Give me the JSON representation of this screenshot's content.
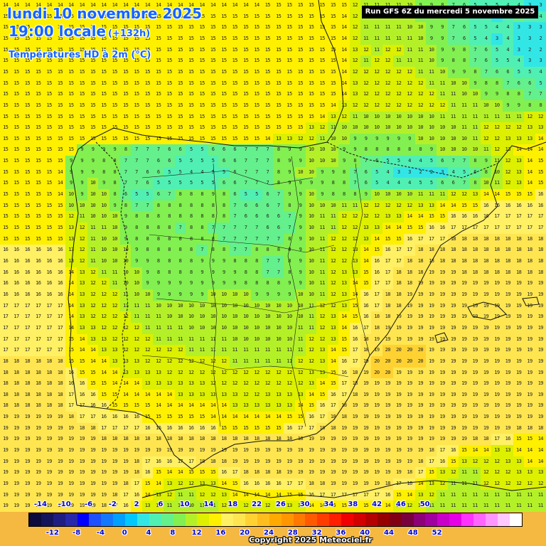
{
  "header": {
    "date_line": "lundi 10 novembre 2025",
    "time_line": "19:00 locale",
    "lead_time": "(+132h)",
    "parameter": "Températures HD à 2m (°C)",
    "run_info": "Run GFS 6Z du mercredi 5 novembre 2025"
  },
  "footer": {
    "copyright": "Copyright 2025 Meteociel.fr"
  },
  "legend": {
    "unit": "°C",
    "ticks_top": [
      "-14",
      "-10",
      "-6",
      "-2",
      "2",
      "6",
      "10",
      "14",
      "18",
      "22",
      "26",
      "30",
      "34",
      "38",
      "42",
      "46",
      "50"
    ],
    "ticks_bottom": [
      "-12",
      "-8",
      "-4",
      "0",
      "4",
      "8",
      "12",
      "16",
      "20",
      "24",
      "28",
      "32",
      "36",
      "40",
      "44",
      "48",
      "52"
    ],
    "colors": [
      "#0a0a3c",
      "#14145a",
      "#1e1e82",
      "#2828aa",
      "#0000ff",
      "#1e50ff",
      "#1478ff",
      "#00a0ff",
      "#00c8ff",
      "#32e6e6",
      "#50f0b4",
      "#64f08c",
      "#82f050",
      "#b4f028",
      "#dcf000",
      "#fff000",
      "#fff064",
      "#ffe650",
      "#ffd232",
      "#ffbe1e",
      "#ffaa00",
      "#ff9600",
      "#ff7800",
      "#ff5a00",
      "#ff3c00",
      "#ff1e00",
      "#f00000",
      "#d20000",
      "#b40000",
      "#960000",
      "#820014",
      "#78003c",
      "#8c0078",
      "#a000a0",
      "#c800c8",
      "#e600e6",
      "#ff32ff",
      "#ff64ff",
      "#ff96ff",
      "#ffc8ff",
      "#ffffff"
    ]
  },
  "chart_data": {
    "type": "heatmap",
    "title": "Températures HD à 2m (°C)",
    "subtitle": "lundi 10 novembre 2025 19:00 locale (+132h) — Run GFS 6Z du mercredi 5 novembre 2025",
    "region": "Iberian Peninsula, southern France, Balearic Islands, Morocco north coast",
    "unit": "°C",
    "grid_cols": 50,
    "grid_rows": 46,
    "rows": [
      "14 14 14 14 14 14 14 14 14 14 14 14 14 14 14 14 14 14 14 14 14 14 14 14 15 15 15 15 15 15 15 15 12 11 11 11 11 10 9 9 8 7 6 5 5 5 4 4 3 3",
      "15 15 15 15 15 15 15 15 15 15 15 15 15 15 15 15 15 15 15 15 15 15 15 15 15 15 15 15 15 15 15 14 12 11 11 11 11 10 9 9 8 7 6 5 5 3 5 6 4 4",
      "15 15 15 15 15 15 15 15 15 15 15 15 15 15 15 15 15 15 15 15 15 15 15 15 15 15 15 15 15 15 15 14 12 11 11 11 11 10 10 9 9 7 6 5 5 4 4 3 3 3",
      "15 15 15 15 15 15 15 15 15 15 15 15 15 15 15 15 15 15 15 15 15 15 15 15 15 15 15 15 15 15 15 14 12 11 11 11 11 11 10 9 9 7 6 5 4 3 4 3 3 2",
      "15 15 15 15 15 15 15 15 15 15 15 15 15 15 15 15 15 15 15 15 15 15 15 15 15 15 15 15 15 15 15 14 13 12 11 12 12 11 11 10 9 9 8 7 6 5 4 3 2 2",
      "15 15 15 15 15 15 15 15 15 15 15 15 15 15 15 15 15 15 15 15 15 15 15 15 15 15 15 15 15 15 15 14 12 11 12 12 11 11 11 10 9 8 8 7 6 5 5 4 3 3",
      "15 15 15 15 15 15 15 15 15 15 15 15 15 15 15 15 15 15 15 15 15 15 15 15 15 15 15 15 15 15 15 14 12 12 12 12 12 12 11 11 10 9 9 8 7 6 6 5 5 4",
      "15 15 15 15 15 15 15 15 15 15 15 15 15 15 15 15 15 15 15 15 15 15 15 15 15 15 15 15 15 15 15 14 13 12 12 12 12 12 12 11 11 10 10 9 8 8 7 6 6 5",
      "15 15 15 15 15 15 15 15 15 15 15 15 15 15 15 15 15 15 15 15 15 15 15 15 15 15 15 15 15 15 15 14 13 12 12 12 12 12 12 12 11 11 10 10 9 9 8 8 7 7",
      "15 15 15 15 15 15 15 15 15 15 15 15 15 15 15 15 15 15 15 15 15 15 15 15 15 15 15 15 15 15 14 13 12 12 12 12 12 12 12 12 12 11 11 11 10 10 9 9 8 8",
      "15 15 15 15 15 15 15 15 15 15 15 15 15 15 15 15 15 15 15 15 15 15 15 15 15 15 15 15 15 14 13 12 11 10 10 10 10 10 10 10 11 11 11 11 11 11 11 11 12 12",
      "15 15 15 15 15 15 15 15 15 15 15 15 15 15 15 15 15 15 15 15 15 15 15 15 15 15 15 15 13 12 11 10 10 10 10 10 10 10 10 10 10 10 11 11 12 12 12 12 13 13",
      "15 15 15 15 15 15 15 15 15 15 15 15 15 15 15 15 15 15 15 15 15 15 15 15 14 13 13 12 12 11 10 10 9 9 9 9 9 9 10 10 10 10 10 11 12 12 13 13 13 14",
      "15 15 15 15 15 15 15 9 9 9 9 8 7 7 7 6 6 5 5 6 6 6 7 7 7 8 9 9 10 10 10 9 9 8 8 8 8 8 8 9 10 10 10 10 11 12 13 14 14 14",
      "15 15 15 15 15 15 9 9 9 8 8 7 7 7 6 6 5 5 5 5 6 6 7 7 7 8 9 9 10 10 10 9 8 7 6 5 5 4 4 5 6 7 7 8 9 11 12 13 14 15",
      "15 15 15 15 15 14 9 9 9 8 8 7 7 6 6 5 5 4 4 5 5 6 7 7 7 8 9 10 10 9 9 8 7 6 5 4 3 3 2 2 3 4 5 6 8 10 12 13 14 15",
      "15 15 15 15 15 14 9 9 10 9 8 7 7 6 5 5 5 5 5 5 6 6 7 7 7 8 9 9 9 9 8 8 7 6 5 4 4 4 5 5 6 6 7 8 10 11 12 13 14 15",
      "15 15 15 15 15 14 10 9 10 10 8 6 5 5 6 7 8 8 8 9 8 6 5 5 6 7 9 9 10 9 8 8 8 9 10 10 10 10 11 11 11 12 12 13 14 14 15 15 15 16",
      "15 15 15 15 15 15 10 10 10 10 9 8 7 7 8 8 8 8 8 8 8 7 6 6 6 7 8 9 10 10 10 11 11 12 12 12 12 12 13 13 14 14 15 15 16 16 16 16 16 16",
      "15 15 15 15 15 15 12 11 10 10 10 9 8 8 8 8 8 8 8 8 8 7 6 6 6 6 7 9 10 11 11 12 12 12 12 13 13 14 14 15 15 16 16 16 16 17 17 17 17 17",
      "15 15 15 15 15 15 13 12 11 11 10 9 8 8 8 8 7 8 8 7 7 7 7 7 6 6 7 9 10 11 11 12 12 13 13 14 14 15 15 16 16 17 17 17 17 17 17 17 17 17",
      "15 15 15 15 15 15 13 12 11 10 10 9 8 8 8 8 8 8 8 8 7 7 7 7 7 7 8 9 10 11 12 12 12 13 14 15 15 16 17 17 17 18 18 18 18 18 18 18 18 18",
      "16 16 16 16 16 16 13 12 11 10 10 10 9 8 8 8 8 8 7 8 8 7 7 8 8 8 8 9 10 11 12 12 13 14 15 16 17 17 18 18 18 18 18 18 18 18 18 18 18 18",
      "16 16 16 16 16 16 13 12 11 10 10 10 9 9 8 8 8 8 9 9 9 8 8 8 7 7 8 9 10 11 12 12 13 14 16 17 17 18 18 18 18 18 18 18 18 18 18 18 18 18",
      "16 16 16 16 16 16 14 13 12 11 11 10 10 9 8 8 8 8 9 9 9 9 8 8 7 7 8 9 10 11 12 13 13 15 16 17 18 18 18 19 19 19 18 18 18 18 18 18 18 18",
      "16 16 16 16 16 16 14 13 12 12 11 10 10 9 9 9 9 9 9 9 9 9 8 8 8 8 9 9 10 11 12 13 14 15 17 17 18 18 19 19 19 19 19 19 19 19 19 19 19 19",
      "16 16 16 16 16 16 14 13 12 12 12 11 10 10 9 9 9 9 9 10 10 10 10 9 9 9 9 10 10 11 12 13 14 16 17 18 18 19 19 19 19 19 19 19 19 19 19 19 19 19",
      "17 17 17 17 17 17 14 13 12 12 12 11 11 11 10 10 10 10 10 10 10 10 10 10 10 10 10 10 11 12 12 13 15 16 17 18 18 19 19 19 19 19 19 19 19 19 19 19 19 19",
      "17 17 17 17 17 17 14 13 12 12 12 12 11 11 11 10 10 10 10 10 10 10 10 10 10 10 10 10 11 12 13 14 15 16 18 18 19 19 19 19 19 19 19 19 19 19 19 19 19 19",
      "17 17 17 17 17 17 14 13 13 12 12 12 12 11 11 11 11 10 10 10 10 10 10 10 10 10 10 11 11 12 13 14 16 17 18 19 19 19 19 19 19 19 19 19 19 19 19 19 19 19",
      "17 17 17 17 17 17 15 14 13 13 12 12 12 12 11 11 11 11 11 11 11 10 10 10 10 10 10 11 12 12 13 15 16 18 19 19 19 19 19 19 19 19 19 19 19 19 19 19 19 19",
      "17 17 17 17 17 17 15 14 14 13 13 12 12 12 12 12 12 11 11 11 11 11 11 11 11 11 11 11 12 13 14 15 17 18 19 20 20 20 20 19 19 19 19 19 19 19 19 19 19 19",
      "18 18 18 18 18 18 15 15 14 14 13 13 13 12 12 12 12 12 12 12 12 11 11 11 11 11 11 12 12 13 14 16 17 19 20 20 20 20 20 19 19 19 19 19 19 19 19 19 19 19",
      "18 18 18 18 18 18 16 15 15 14 14 13 13 13 13 12 12 12 12 12 12 12 12 12 12 12 12 12 13 13 15 16 18 19 20 20 19 19 19 19 19 19 19 19 19 19 19 19 19 19",
      "18 18 18 18 18 18 16 16 15 15 14 14 14 13 13 13 13 13 13 12 12 12 12 12 12 12 12 12 13 14 15 17 18 19 19 19 19 19 19 19 19 19 19 19 19 19 19 19 19 19",
      "18 18 18 18 18 18 17 16 16 15 15 14 14 14 14 14 13 13 13 13 13 13 12 12 13 13 13 13 14 15 16 17 18 19 19 19 19 19 19 19 19 19 19 19 19 19 19 19 19 19",
      "18 18 18 18 18 18 17 17 16 16 15 15 15 15 14 14 14 14 14 14 14 13 13 13 13 13 13 14 15 16 17 18 19 19 19 19 19 19 19 19 19 19 19 19 19 19 19 19 19 19",
      "19 19 19 19 19 19 18 17 17 16 16 16 16 15 15 15 15 15 15 14 14 14 14 14 14 14 15 15 16 17 18 18 19 19 19 19 19 19 19 19 19 19 19 19 19 19 19 19 19 19",
      "19 19 19 19 19 19 19 18 18 17 17 17 17 16 16 16 16 16 16 16 15 15 15 15 15 15 16 17 17 18 18 19 19 19 19 19 19 19 19 19 19 19 19 19 19 19 19 18 18 18",
      "19 19 19 19 19 19 19 19 19 18 18 18 18 18 18 18 18 18 18 18 18 18 18 18 18 18 18 18 19 19 19 19 19 19 19 19 19 19 19 19 19 19 19 18 18 17 16 15 15 14",
      "19 19 19 19 19 19 19 19 19 19 19 19 19 19 19 19 19 19 19 19 19 19 19 19 19 19 19 19 19 19 19 19 19 19 19 19 19 19 19 18 17 16 15 14 14 13 13 14 14 14",
      "19 19 19 19 19 19 19 19 19 19 19 19 18 17 16 16 17 17 18 18 18 19 19 19 19 19 19 19 19 19 19 19 19 19 19 19 19 19 18 17 16 15 13 12 12 12 13 13 14 14",
      "19 19 19 19 19 19 19 19 19 19 19 19 18 16 15 14 14 15 15 15 16 17 18 18 18 18 19 19 19 19 19 19 19 19 19 19 19 18 17 15 13 12 11 11 12 12 12 13 13 13",
      "19 19 19 19 19 19 19 19 19 19 19 18 17 15 14 13 12 12 13 13 14 15 16 16 16 16 17 17 18 18 19 19 19 19 19 18 17 16 14 13 12 11 11 11 12 12 12 12 12 12",
      "19 19 19 19 19 19 19 19 19 19 18 17 16 14 13 12 11 11 12 12 13 14 14 14 14 14 15 15 16 17 17 17 17 17 17 16 15 14 13 12 11 11 11 11 11 11 11 11 11 11",
      "19 19 19 19 19 19 19 19 19 18 17 16 15 13 12 11 10 10 11 11 12 12 12 12 12 12 13 13 14 14 15 15 15 15 15 14 13 12 12 11 11 11 11 11 11 11 11 11 11 11"
    ],
    "color_scale": {
      "min": -14,
      "max": 52,
      "step": 2
    },
    "annotations": [
      "Copyright 2025 Meteociel.fr"
    ]
  }
}
